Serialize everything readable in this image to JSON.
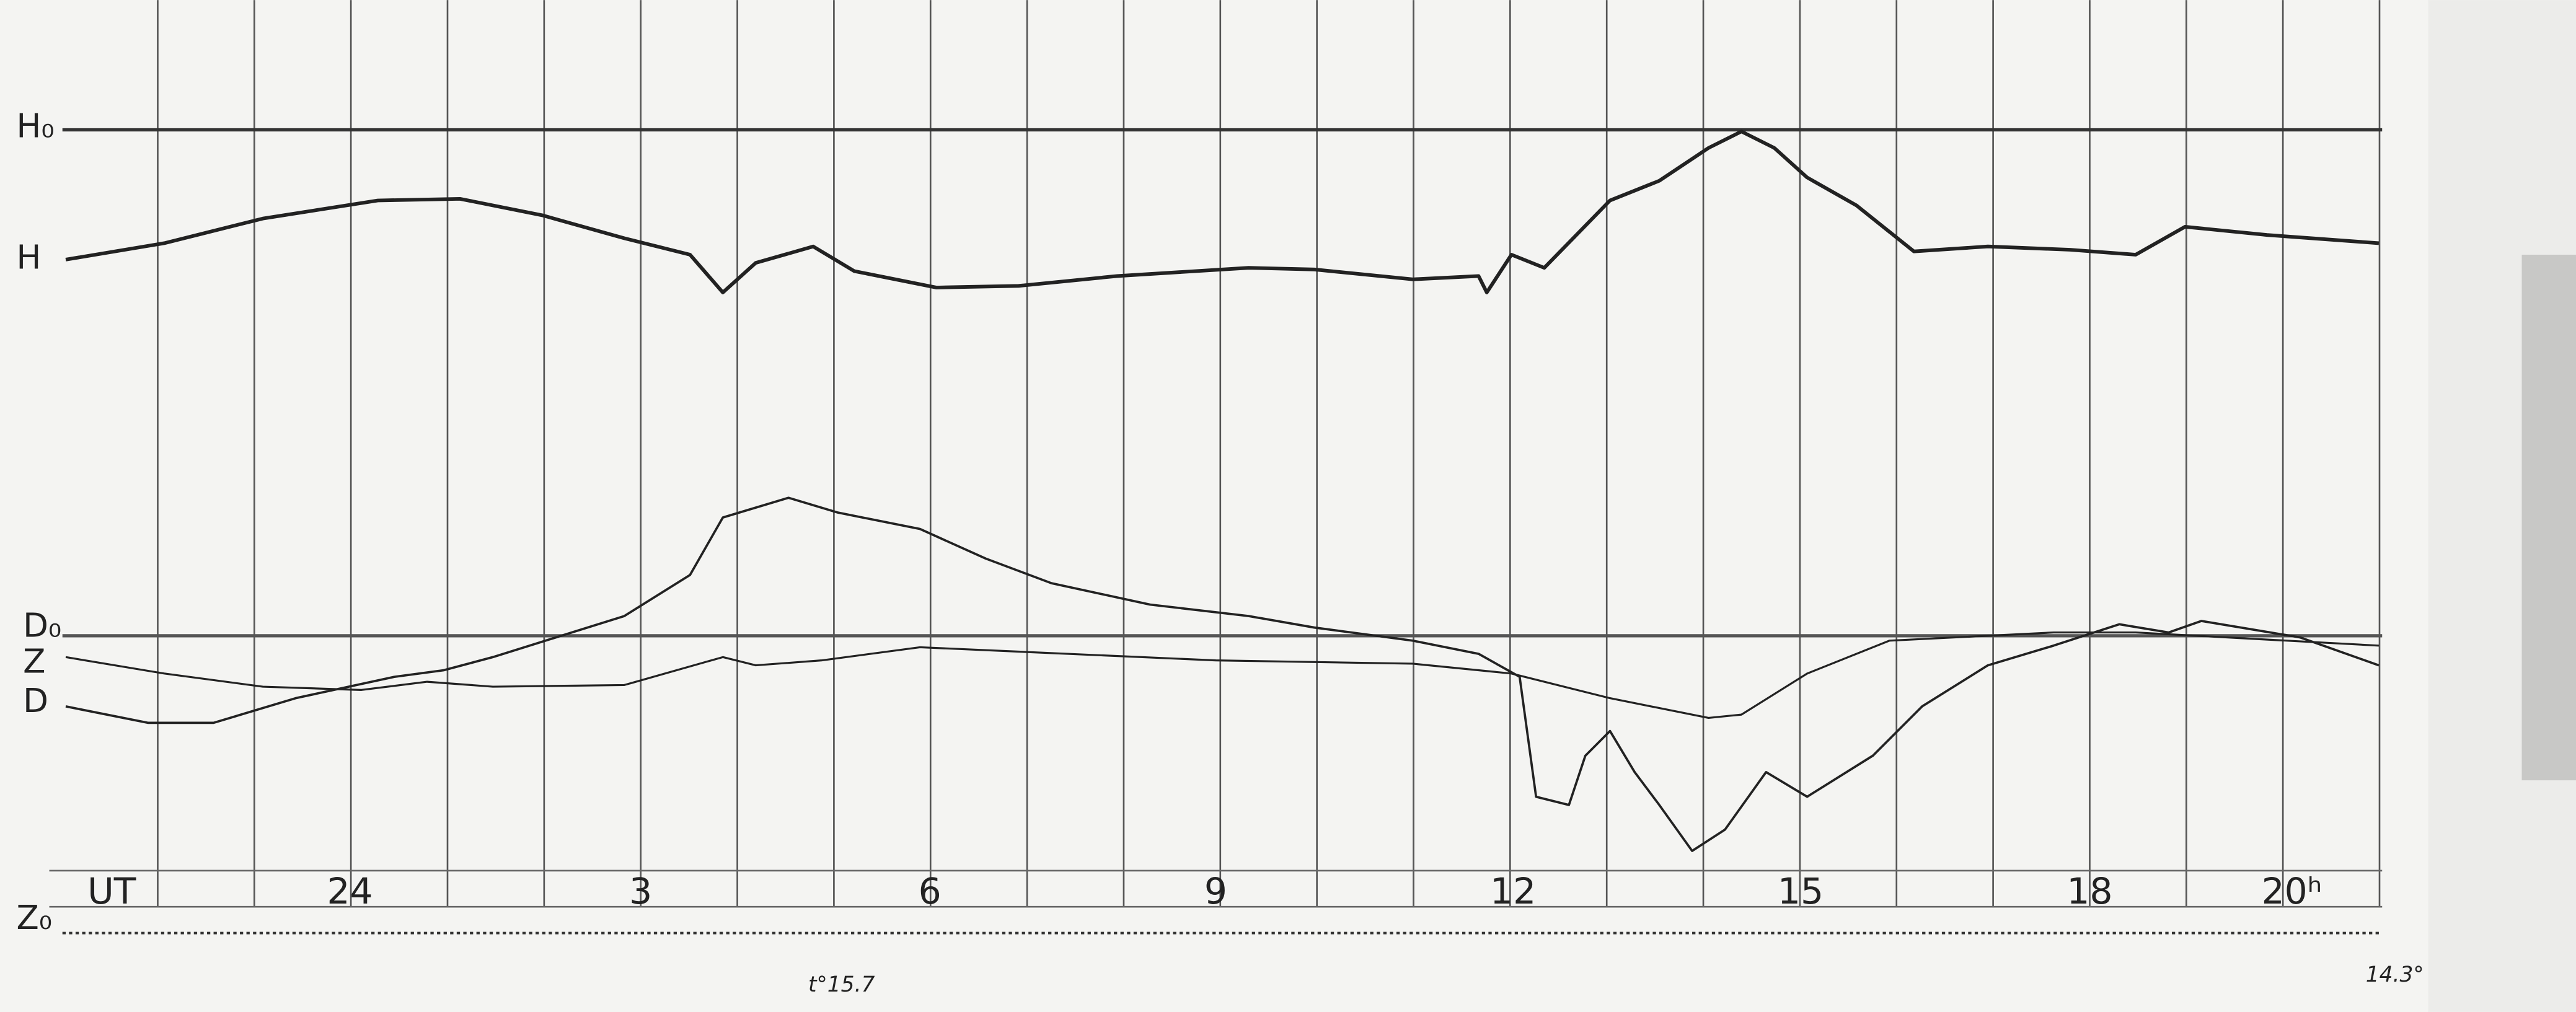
{
  "trace_labels": {
    "h_base": "H₀",
    "h": "H",
    "d_base": "D₀",
    "z": "Z",
    "d": "D",
    "z_base": "Z₀"
  },
  "time_axis": {
    "label": "UT",
    "ticks": [
      "24",
      "3",
      "6",
      "9",
      "12",
      "15",
      "18",
      "20ʰ"
    ]
  },
  "annotations": {
    "start_temperature": "t°15.7",
    "end_temperature": "14.3°"
  }
}
